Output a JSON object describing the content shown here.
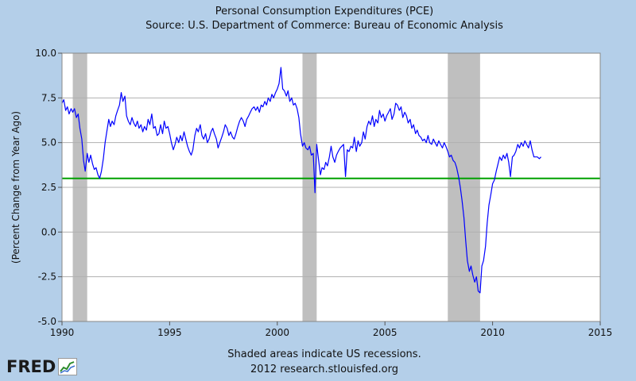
{
  "chart_data": {
    "type": "line",
    "title": "Personal Consumption Expenditures (PCE)",
    "subtitle": "Source: U.S. Department of Commerce: Bureau of Economic Analysis",
    "ylabel": "(Percent Change from Year Ago)",
    "xlabel": "",
    "xlim": [
      1990,
      2015
    ],
    "ylim": [
      -5.0,
      10.0
    ],
    "x_ticks": [
      "1990",
      "1995",
      "2000",
      "2005",
      "2010",
      "2015"
    ],
    "y_ticks": [
      "10.0",
      "7.5",
      "5.0",
      "2.5",
      "0.0",
      "-2.5",
      "-5.0"
    ],
    "grid": true,
    "recessions": [
      {
        "start": 1990.5,
        "end": 1991.17
      },
      {
        "start": 2001.17,
        "end": 2001.83
      },
      {
        "start": 2007.92,
        "end": 2009.42
      }
    ],
    "reference_line": {
      "value": 3.0,
      "color": "#00a000"
    },
    "series": [
      {
        "color": "#0000ff",
        "points": [
          [
            1990.0,
            7.2
          ],
          [
            1990.08,
            7.4
          ],
          [
            1990.17,
            6.8
          ],
          [
            1990.25,
            7.0
          ],
          [
            1990.33,
            6.6
          ],
          [
            1990.42,
            6.9
          ],
          [
            1990.5,
            6.7
          ],
          [
            1990.58,
            6.9
          ],
          [
            1990.67,
            6.4
          ],
          [
            1990.75,
            6.6
          ],
          [
            1990.83,
            5.8
          ],
          [
            1990.92,
            5.2
          ],
          [
            1991.0,
            4.0
          ],
          [
            1991.08,
            3.4
          ],
          [
            1991.17,
            4.4
          ],
          [
            1991.25,
            3.9
          ],
          [
            1991.33,
            4.3
          ],
          [
            1991.42,
            3.8
          ],
          [
            1991.5,
            3.5
          ],
          [
            1991.58,
            3.6
          ],
          [
            1991.67,
            3.2
          ],
          [
            1991.75,
            3.0
          ],
          [
            1991.83,
            3.4
          ],
          [
            1991.92,
            4.1
          ],
          [
            1992.0,
            5.0
          ],
          [
            1992.08,
            5.6
          ],
          [
            1992.17,
            6.3
          ],
          [
            1992.25,
            5.9
          ],
          [
            1992.33,
            6.2
          ],
          [
            1992.42,
            6.0
          ],
          [
            1992.5,
            6.5
          ],
          [
            1992.58,
            6.8
          ],
          [
            1992.67,
            7.1
          ],
          [
            1992.75,
            7.8
          ],
          [
            1992.83,
            7.3
          ],
          [
            1992.92,
            7.6
          ],
          [
            1993.0,
            6.5
          ],
          [
            1993.08,
            6.2
          ],
          [
            1993.17,
            6.0
          ],
          [
            1993.25,
            6.4
          ],
          [
            1993.33,
            6.1
          ],
          [
            1993.42,
            5.9
          ],
          [
            1993.5,
            6.2
          ],
          [
            1993.58,
            5.8
          ],
          [
            1993.67,
            6.0
          ],
          [
            1993.75,
            5.6
          ],
          [
            1993.83,
            5.9
          ],
          [
            1993.92,
            5.7
          ],
          [
            1994.0,
            6.3
          ],
          [
            1994.08,
            6.0
          ],
          [
            1994.17,
            6.6
          ],
          [
            1994.25,
            5.8
          ],
          [
            1994.33,
            5.9
          ],
          [
            1994.42,
            5.4
          ],
          [
            1994.5,
            5.5
          ],
          [
            1994.58,
            6.0
          ],
          [
            1994.67,
            5.5
          ],
          [
            1994.75,
            6.2
          ],
          [
            1994.83,
            5.8
          ],
          [
            1994.92,
            5.9
          ],
          [
            1995.0,
            5.5
          ],
          [
            1995.08,
            5.0
          ],
          [
            1995.17,
            4.6
          ],
          [
            1995.25,
            4.9
          ],
          [
            1995.33,
            5.3
          ],
          [
            1995.42,
            5.0
          ],
          [
            1995.5,
            5.4
          ],
          [
            1995.58,
            5.1
          ],
          [
            1995.67,
            5.6
          ],
          [
            1995.75,
            5.2
          ],
          [
            1995.83,
            4.8
          ],
          [
            1995.92,
            4.5
          ],
          [
            1996.0,
            4.3
          ],
          [
            1996.08,
            4.6
          ],
          [
            1996.17,
            5.4
          ],
          [
            1996.25,
            5.8
          ],
          [
            1996.33,
            5.6
          ],
          [
            1996.42,
            6.0
          ],
          [
            1996.5,
            5.4
          ],
          [
            1996.58,
            5.2
          ],
          [
            1996.67,
            5.5
          ],
          [
            1996.75,
            5.0
          ],
          [
            1996.83,
            5.2
          ],
          [
            1996.92,
            5.6
          ],
          [
            1997.0,
            5.8
          ],
          [
            1997.08,
            5.5
          ],
          [
            1997.17,
            5.2
          ],
          [
            1997.25,
            4.7
          ],
          [
            1997.33,
            5.0
          ],
          [
            1997.42,
            5.3
          ],
          [
            1997.5,
            5.6
          ],
          [
            1997.58,
            6.0
          ],
          [
            1997.67,
            5.8
          ],
          [
            1997.75,
            5.4
          ],
          [
            1997.83,
            5.6
          ],
          [
            1997.92,
            5.3
          ],
          [
            1998.0,
            5.2
          ],
          [
            1998.08,
            5.5
          ],
          [
            1998.17,
            5.9
          ],
          [
            1998.25,
            6.2
          ],
          [
            1998.33,
            6.4
          ],
          [
            1998.42,
            6.2
          ],
          [
            1998.5,
            5.9
          ],
          [
            1998.58,
            6.3
          ],
          [
            1998.67,
            6.5
          ],
          [
            1998.75,
            6.7
          ],
          [
            1998.83,
            6.9
          ],
          [
            1998.92,
            7.0
          ],
          [
            1999.0,
            6.8
          ],
          [
            1999.08,
            7.0
          ],
          [
            1999.17,
            6.7
          ],
          [
            1999.25,
            7.1
          ],
          [
            1999.33,
            7.0
          ],
          [
            1999.42,
            7.3
          ],
          [
            1999.5,
            7.1
          ],
          [
            1999.58,
            7.5
          ],
          [
            1999.67,
            7.3
          ],
          [
            1999.75,
            7.7
          ],
          [
            1999.83,
            7.5
          ],
          [
            1999.92,
            7.8
          ],
          [
            2000.0,
            8.0
          ],
          [
            2000.08,
            8.3
          ],
          [
            2000.17,
            9.2
          ],
          [
            2000.25,
            8.0
          ],
          [
            2000.33,
            7.9
          ],
          [
            2000.42,
            7.6
          ],
          [
            2000.5,
            7.9
          ],
          [
            2000.58,
            7.3
          ],
          [
            2000.67,
            7.5
          ],
          [
            2000.75,
            7.1
          ],
          [
            2000.83,
            7.2
          ],
          [
            2000.92,
            6.9
          ],
          [
            2001.0,
            6.4
          ],
          [
            2001.08,
            5.5
          ],
          [
            2001.17,
            4.8
          ],
          [
            2001.25,
            5.0
          ],
          [
            2001.33,
            4.7
          ],
          [
            2001.42,
            4.6
          ],
          [
            2001.5,
            4.8
          ],
          [
            2001.58,
            4.3
          ],
          [
            2001.67,
            4.4
          ],
          [
            2001.75,
            2.2
          ],
          [
            2001.83,
            4.9
          ],
          [
            2001.92,
            4.0
          ],
          [
            2002.0,
            3.2
          ],
          [
            2002.08,
            3.6
          ],
          [
            2002.17,
            3.5
          ],
          [
            2002.25,
            3.9
          ],
          [
            2002.33,
            3.7
          ],
          [
            2002.42,
            4.2
          ],
          [
            2002.5,
            4.8
          ],
          [
            2002.58,
            4.2
          ],
          [
            2002.67,
            3.9
          ],
          [
            2002.75,
            4.3
          ],
          [
            2002.83,
            4.5
          ],
          [
            2002.92,
            4.7
          ],
          [
            2003.0,
            4.8
          ],
          [
            2003.08,
            4.9
          ],
          [
            2003.17,
            3.1
          ],
          [
            2003.25,
            4.6
          ],
          [
            2003.33,
            4.5
          ],
          [
            2003.42,
            4.8
          ],
          [
            2003.5,
            4.7
          ],
          [
            2003.58,
            5.3
          ],
          [
            2003.67,
            4.5
          ],
          [
            2003.75,
            5.1
          ],
          [
            2003.83,
            4.8
          ],
          [
            2003.92,
            5.0
          ],
          [
            2004.0,
            5.6
          ],
          [
            2004.08,
            5.2
          ],
          [
            2004.17,
            5.9
          ],
          [
            2004.25,
            6.2
          ],
          [
            2004.33,
            6.0
          ],
          [
            2004.42,
            6.5
          ],
          [
            2004.5,
            5.9
          ],
          [
            2004.58,
            6.3
          ],
          [
            2004.67,
            6.1
          ],
          [
            2004.75,
            6.8
          ],
          [
            2004.83,
            6.4
          ],
          [
            2004.92,
            6.6
          ],
          [
            2005.0,
            6.2
          ],
          [
            2005.08,
            6.5
          ],
          [
            2005.17,
            6.7
          ],
          [
            2005.25,
            6.9
          ],
          [
            2005.33,
            6.3
          ],
          [
            2005.42,
            6.6
          ],
          [
            2005.5,
            7.2
          ],
          [
            2005.58,
            7.1
          ],
          [
            2005.67,
            6.8
          ],
          [
            2005.75,
            7.0
          ],
          [
            2005.83,
            6.4
          ],
          [
            2005.92,
            6.7
          ],
          [
            2006.0,
            6.5
          ],
          [
            2006.08,
            6.1
          ],
          [
            2006.17,
            6.3
          ],
          [
            2006.25,
            5.8
          ],
          [
            2006.33,
            6.0
          ],
          [
            2006.42,
            5.5
          ],
          [
            2006.5,
            5.7
          ],
          [
            2006.58,
            5.4
          ],
          [
            2006.67,
            5.3
          ],
          [
            2006.75,
            5.1
          ],
          [
            2006.83,
            5.2
          ],
          [
            2006.92,
            5.0
          ],
          [
            2007.0,
            5.4
          ],
          [
            2007.08,
            5.0
          ],
          [
            2007.17,
            4.9
          ],
          [
            2007.25,
            5.2
          ],
          [
            2007.33,
            5.0
          ],
          [
            2007.42,
            4.8
          ],
          [
            2007.5,
            5.1
          ],
          [
            2007.58,
            4.9
          ],
          [
            2007.67,
            4.7
          ],
          [
            2007.75,
            5.0
          ],
          [
            2007.83,
            4.8
          ],
          [
            2007.92,
            4.5
          ],
          [
            2008.0,
            4.2
          ],
          [
            2008.08,
            4.3
          ],
          [
            2008.17,
            4.0
          ],
          [
            2008.25,
            3.9
          ],
          [
            2008.33,
            3.6
          ],
          [
            2008.42,
            3.1
          ],
          [
            2008.5,
            2.5
          ],
          [
            2008.58,
            1.8
          ],
          [
            2008.67,
            0.8
          ],
          [
            2008.75,
            -0.5
          ],
          [
            2008.83,
            -1.6
          ],
          [
            2008.92,
            -2.2
          ],
          [
            2009.0,
            -1.9
          ],
          [
            2009.08,
            -2.4
          ],
          [
            2009.17,
            -2.8
          ],
          [
            2009.25,
            -2.5
          ],
          [
            2009.33,
            -3.3
          ],
          [
            2009.42,
            -3.4
          ],
          [
            2009.5,
            -1.9
          ],
          [
            2009.58,
            -1.6
          ],
          [
            2009.67,
            -0.8
          ],
          [
            2009.75,
            0.5
          ],
          [
            2009.83,
            1.5
          ],
          [
            2009.92,
            2.1
          ],
          [
            2010.0,
            2.7
          ],
          [
            2010.08,
            2.9
          ],
          [
            2010.17,
            3.4
          ],
          [
            2010.25,
            3.8
          ],
          [
            2010.33,
            4.2
          ],
          [
            2010.42,
            4.0
          ],
          [
            2010.5,
            4.3
          ],
          [
            2010.58,
            4.1
          ],
          [
            2010.67,
            4.4
          ],
          [
            2010.75,
            3.9
          ],
          [
            2010.83,
            3.1
          ],
          [
            2010.92,
            4.2
          ],
          [
            2011.0,
            4.3
          ],
          [
            2011.08,
            4.5
          ],
          [
            2011.17,
            4.9
          ],
          [
            2011.25,
            4.7
          ],
          [
            2011.33,
            5.0
          ],
          [
            2011.42,
            4.8
          ],
          [
            2011.5,
            5.1
          ],
          [
            2011.58,
            4.9
          ],
          [
            2011.67,
            4.7
          ],
          [
            2011.75,
            5.1
          ],
          [
            2011.83,
            4.6
          ],
          [
            2011.92,
            4.2
          ],
          [
            2012.0,
            4.2
          ],
          [
            2012.08,
            4.2
          ],
          [
            2012.17,
            4.1
          ],
          [
            2012.25,
            4.2
          ]
        ]
      }
    ]
  },
  "footer": {
    "line1": "Shaded areas indicate US recessions.",
    "line2": "2012 research.stlouisfed.org"
  },
  "logo": {
    "text": "FRED"
  }
}
